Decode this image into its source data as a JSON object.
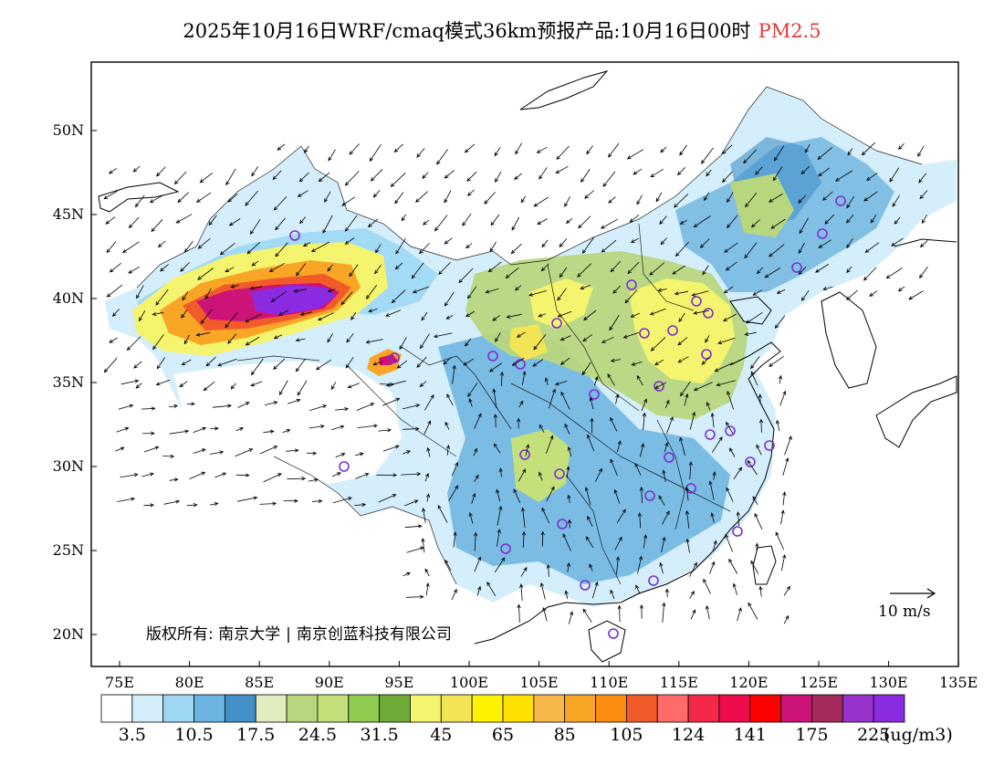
{
  "title": {
    "text": "2025年10月16日WRF/cmaq模式36km预报产品:10月16日00时",
    "product": "PM2.5",
    "product_color": "#e23c3c"
  },
  "map": {
    "lat_labels": [
      "50N",
      "45N",
      "40N",
      "35N",
      "30N",
      "25N",
      "20N"
    ],
    "lon_labels": [
      "75E",
      "80E",
      "85E",
      "90E",
      "95E",
      "100E",
      "105E",
      "110E",
      "115E",
      "120E",
      "125E",
      "130E",
      "135E"
    ],
    "lat_range": [
      18,
      54
    ],
    "lon_range": [
      73,
      135
    ],
    "grid": false
  },
  "wind_scale": {
    "label": "10 m/s"
  },
  "copyright": {
    "prefix": "版权所有:",
    "org1": "南京大学",
    "org2": "南京创蓝科技有限公司"
  },
  "legend": {
    "colors": [
      "#ffffff",
      "#d4eefb",
      "#9dd7f4",
      "#6bb3e0",
      "#4391c8",
      "#e0ecbe",
      "#b8d67e",
      "#c4e07a",
      "#8fcc4f",
      "#6daa38",
      "#f4f46e",
      "#f2e455",
      "#fff200",
      "#ffe100",
      "#f8b749",
      "#f9a627",
      "#fa8c0f",
      "#f15b2a",
      "#ff6b6b",
      "#f4294a",
      "#ee0c4d",
      "#ff0000",
      "#cc1478",
      "#a32a5a",
      "#9932cc",
      "#8a2be2"
    ],
    "tick_labels": [
      "3.5",
      "10.5",
      "17.5",
      "24.5",
      "31.5",
      "45",
      "65",
      "85",
      "105",
      "124",
      "141",
      "175",
      "225"
    ],
    "units": "(ug/m3)"
  }
}
